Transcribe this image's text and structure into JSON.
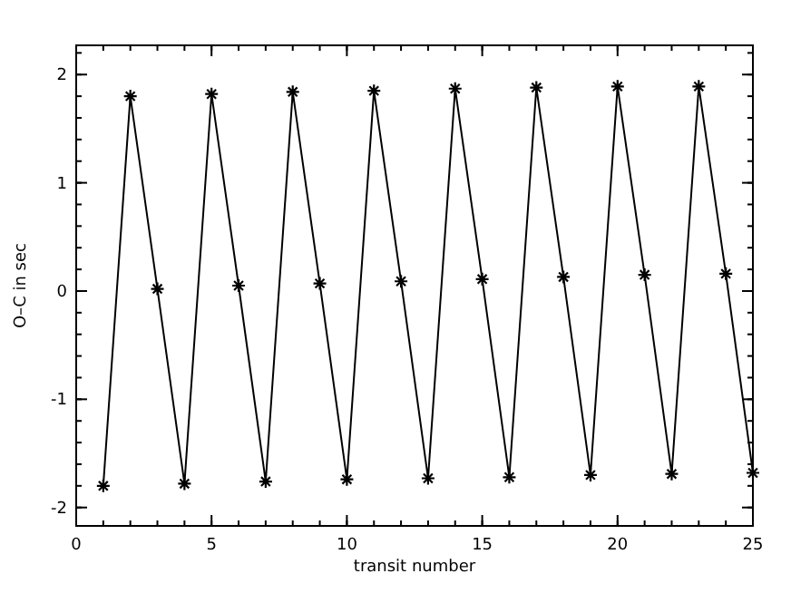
{
  "chart_data": {
    "type": "line",
    "xlabel": "transit number",
    "ylabel": "O–C in sec",
    "marker": "cross",
    "line_style": "solid",
    "grid": false,
    "xlim": [
      0,
      25
    ],
    "ylim": [
      -2.17,
      2.27
    ],
    "xticks": [
      0,
      5,
      10,
      15,
      20,
      25
    ],
    "yticks": [
      -2,
      -1,
      0,
      1,
      2
    ],
    "series": [
      {
        "color": "#000000",
        "x": [
          1,
          2,
          3,
          4,
          5,
          6,
          7,
          8,
          9,
          10,
          11,
          12,
          13,
          14,
          15,
          16,
          17,
          18,
          19,
          20,
          21,
          22,
          23,
          24,
          25
        ],
        "values": [
          -1.8,
          1.8,
          0.02,
          -1.78,
          1.82,
          0.05,
          -1.76,
          1.84,
          0.07,
          -1.74,
          1.85,
          0.09,
          -1.73,
          1.87,
          0.11,
          -1.72,
          1.88,
          0.13,
          -1.7,
          1.89,
          0.15,
          -1.69,
          1.89,
          0.16,
          -1.68
        ]
      }
    ]
  }
}
